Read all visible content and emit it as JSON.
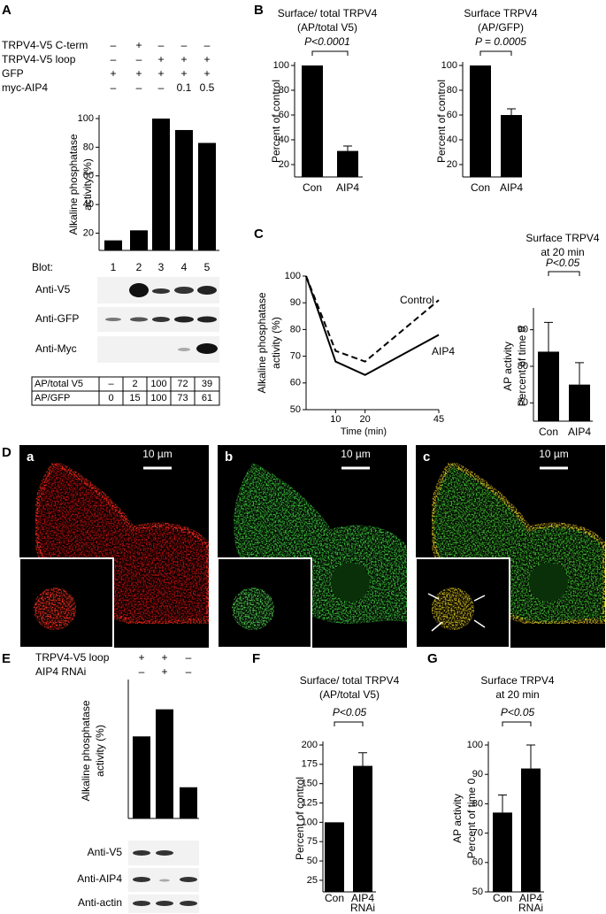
{
  "panel_labels": [
    "A",
    "B",
    "C",
    "D",
    "E",
    "F",
    "G"
  ],
  "panel_a": {
    "conditions": [
      {
        "label": "TRPV4-V5 C-term",
        "cells": [
          "–",
          "+",
          "–",
          "–",
          "–"
        ]
      },
      {
        "label": "TRPV4-V5 loop",
        "cells": [
          "–",
          "–",
          "+",
          "+",
          "+"
        ]
      },
      {
        "label": "GFP",
        "cells": [
          "+",
          "+",
          "+",
          "+",
          "+"
        ]
      },
      {
        "label": "myc-AIP4",
        "cells": [
          "–",
          "–",
          "–",
          "0.1",
          "0.5"
        ]
      }
    ],
    "blot_label": "Blot:",
    "blots": [
      "Anti-V5",
      "Anti-GFP",
      "Anti-Myc"
    ],
    "table": [
      [
        "AP/total V5",
        "–",
        "2",
        "100",
        "72",
        "39"
      ],
      [
        "AP/GFP",
        "0",
        "15",
        "100",
        "73",
        "61"
      ]
    ]
  },
  "panel_d": {
    "subpanels": [
      "a",
      "b",
      "c"
    ],
    "scale_bar": "10 µm"
  },
  "panel_e": {
    "conditions": [
      {
        "label": "TRPV4-V5 loop",
        "cells": [
          "+",
          "+",
          "–"
        ]
      },
      {
        "label": "AIP4 RNAi",
        "cells": [
          "–",
          "+",
          "–"
        ]
      }
    ],
    "blots": [
      "Anti-V5",
      "Anti-AIP4",
      "Anti-actin"
    ]
  },
  "chart_data": [
    {
      "type": "bar",
      "ylabel": [
        "Alkaline phosphatase",
        "activity (%)"
      ],
      "categories": [
        "1",
        "2",
        "3",
        "4",
        "5"
      ],
      "values": [
        15,
        22,
        100,
        92,
        83
      ],
      "color": "#000000",
      "ylim": [
        8,
        100
      ],
      "yticks": [
        20,
        40,
        60,
        80,
        100
      ]
    },
    {
      "type": "bar",
      "title": "Surface/ total TRPV4",
      "subtitle": "(AP/total V5)",
      "annotation": "P<0.0001",
      "ylabel": [
        "Percent of control"
      ],
      "categories": [
        "Con",
        "AIP4"
      ],
      "values": [
        100,
        31
      ],
      "errors": [
        null,
        4
      ],
      "color": "#000000",
      "ylim": [
        10,
        100
      ],
      "yticks": [
        20,
        40,
        60,
        80,
        100
      ]
    },
    {
      "type": "bar",
      "title": "Surface TRPV4",
      "subtitle": "(AP/GFP)",
      "annotation": "P = 0.0005",
      "ylabel": [
        "Percent of control"
      ],
      "categories": [
        "Con",
        "AIP4"
      ],
      "values": [
        100,
        60
      ],
      "errors": [
        null,
        5
      ],
      "color": "#000000",
      "ylim": [
        10,
        100
      ],
      "yticks": [
        20,
        40,
        60,
        80,
        100
      ]
    },
    {
      "type": "line",
      "ylabel": [
        "Alkaline phosphatase",
        "activity (%)"
      ],
      "xlabel": "Time (min)",
      "x": [
        0,
        10,
        20,
        45
      ],
      "series": [
        {
          "name": "Control",
          "color": "#000000",
          "dash": true,
          "values": [
            100,
            72,
            68,
            91
          ]
        },
        {
          "name": "AIP4",
          "color": "#000000",
          "dash": false,
          "values": [
            100,
            68,
            63,
            78
          ]
        }
      ],
      "xlim": [
        0,
        45
      ],
      "ylim": [
        50,
        100
      ],
      "xticks": [
        10,
        20,
        45
      ],
      "yticks": [
        50,
        60,
        70,
        80,
        90,
        100
      ]
    },
    {
      "type": "bar",
      "title": "Surface TRPV4",
      "subtitle": "at 20 min",
      "annotation": "P<0.05",
      "ylabel": [
        "AP activity",
        "Percent of time 0"
      ],
      "categories": [
        "Con",
        "AIP4"
      ],
      "values": [
        84,
        75
      ],
      "errors": [
        8,
        6
      ],
      "color": "#000000",
      "ylim": [
        65,
        95
      ],
      "yticks": [
        70,
        80,
        90
      ]
    },
    {
      "type": "bar",
      "ylabel": [
        "Alkaline phosphatase",
        "activity (%)"
      ],
      "values": [
        100,
        133,
        38
      ],
      "color": "#000000",
      "ylim": [
        0,
        165
      ]
    },
    {
      "type": "bar",
      "title": "Surface/ total TRPV4",
      "subtitle": "(AP/total V5)",
      "annotation": "P<0.05",
      "ylabel": [
        "Percent of control"
      ],
      "categories": [
        "Con",
        "AIP4 RNAi"
      ],
      "values": [
        100,
        173
      ],
      "errors": [
        null,
        17
      ],
      "color": "#000000",
      "ylim": [
        10,
        200
      ],
      "yticks": [
        25,
        50,
        75,
        100,
        125,
        150,
        175,
        200
      ]
    },
    {
      "type": "bar",
      "title": "Surface TRPV4",
      "subtitle": "at 20 min",
      "annotation": "P<0.05",
      "ylabel": [
        "AP activity",
        "Percent of time 0"
      ],
      "categories": [
        "Con",
        "AIP4 RNAi"
      ],
      "values": [
        77,
        92
      ],
      "errors": [
        6,
        8
      ],
      "color": "#000000",
      "ylim": [
        50,
        100
      ],
      "yticks": [
        50,
        60,
        70,
        80,
        90,
        100
      ]
    }
  ]
}
